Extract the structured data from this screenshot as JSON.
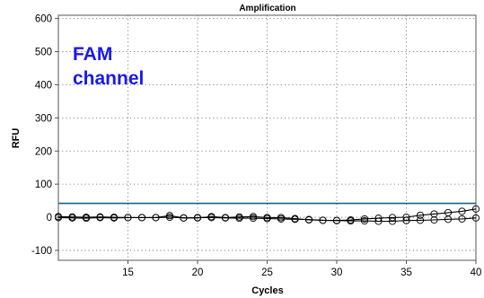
{
  "chart_data": {
    "type": "line",
    "title": "Amplification",
    "xlabel": "Cycles",
    "ylabel": "RFU",
    "xlim": [
      10,
      40
    ],
    "ylim": [
      -130,
      610
    ],
    "x_ticks": [
      15,
      20,
      25,
      30,
      35,
      40
    ],
    "y_ticks": [
      -100,
      0,
      100,
      200,
      300,
      400,
      500,
      600
    ],
    "grid": true,
    "annotation": {
      "lines": [
        "FAM",
        "channel"
      ],
      "color": "#1a1ae6"
    },
    "threshold": {
      "value": 42,
      "color": "#1f5f8b"
    },
    "series": [
      {
        "x": [
          10,
          11,
          12,
          13,
          14,
          15,
          16,
          17,
          18,
          19,
          20,
          21,
          22,
          23,
          24,
          25,
          26,
          27,
          28,
          29,
          30,
          31,
          32,
          33,
          34,
          35,
          36,
          37,
          38,
          39,
          40
        ],
        "values": [
          2,
          1,
          0,
          1,
          0,
          -1,
          -1,
          -1,
          0,
          -2,
          -1,
          -1,
          -2,
          -3,
          -3,
          -4,
          -5,
          -6,
          -7,
          -9,
          -10,
          -8,
          -5,
          -3,
          -1,
          0,
          6,
          10,
          14,
          18,
          25
        ],
        "color": "#000000"
      },
      {
        "x": [
          10,
          11,
          12,
          13,
          14,
          15,
          16,
          17,
          18,
          19,
          20,
          21,
          22,
          23,
          24,
          25,
          26,
          27,
          28,
          29,
          30,
          31,
          32,
          33,
          34,
          35,
          36,
          37,
          38,
          39,
          40
        ],
        "values": [
          -1,
          -2,
          -3,
          -1,
          -2,
          -1,
          -1,
          -1,
          5,
          -2,
          -2,
          2,
          -1,
          1,
          2,
          -1,
          -1,
          -4,
          -8,
          -9,
          -10,
          -11,
          -11,
          -12,
          -12,
          -10,
          -9,
          -8,
          -6,
          -5,
          -2
        ],
        "color": "#000000"
      }
    ]
  }
}
